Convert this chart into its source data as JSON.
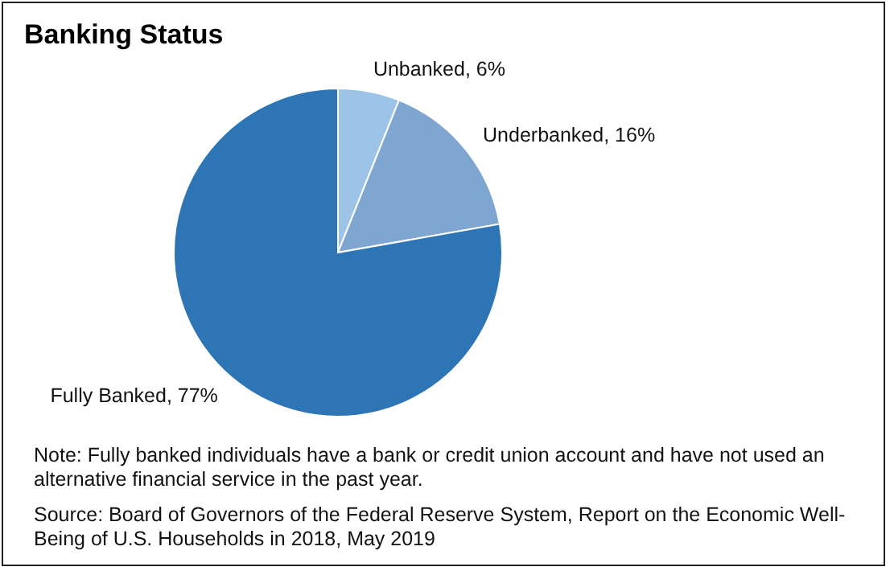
{
  "chart_data": {
    "type": "pie",
    "title": "Banking Status",
    "categories": [
      "Unbanked",
      "Underbanked",
      "Fully Banked"
    ],
    "values": [
      6,
      16,
      77
    ],
    "colors": [
      "#9dc3e6",
      "#7fa6d1",
      "#2e75b6"
    ],
    "value_labels": [
      "6%",
      "16%",
      "77%"
    ],
    "legend": false,
    "annotations": [
      "Note: Fully banked individuals have a bank or credit union account and have not used an alternative financial service in the past year.",
      "Source: Board of Governors of the Federal Reserve System, Report on the Economic Well-Being of U.S. Households in 2018, May 2019"
    ]
  }
}
